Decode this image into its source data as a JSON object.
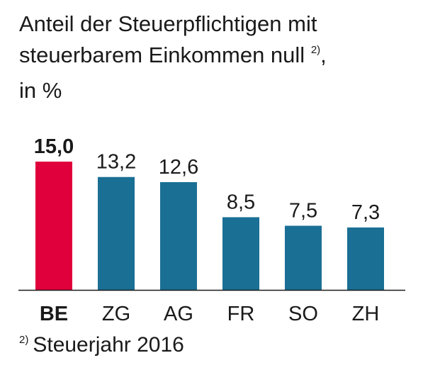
{
  "chart_data": {
    "type": "bar",
    "title_lines": [
      "Anteil der Steuerpflichtigen mit",
      "steuerbarem Einkommen null",
      ", ",
      "in %"
    ],
    "title_note_marker": "2)",
    "categories": [
      "BE",
      "ZG",
      "AG",
      "FR",
      "SO",
      "ZH"
    ],
    "values": [
      15.0,
      13.2,
      12.6,
      8.5,
      7.5,
      7.3
    ],
    "value_labels": [
      "15,0",
      "13,2",
      "12,6",
      "8,5",
      "7,5",
      "7,3"
    ],
    "highlight_index": 0,
    "ylim": [
      0,
      15.0
    ],
    "grid": false,
    "legend": "none"
  },
  "footnote": {
    "marker": "2)",
    "text": "Steuerjahr 2016"
  },
  "colors": {
    "highlight": "#e0003c",
    "bar": "#1a6f95",
    "axis": "#1a1a1a",
    "text": "#1a1a1a"
  }
}
